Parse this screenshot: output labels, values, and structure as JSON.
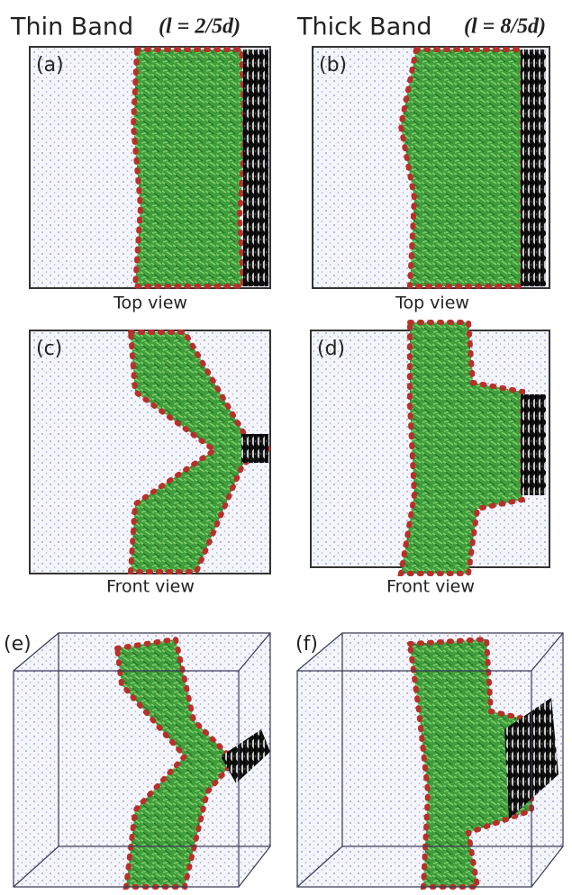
{
  "header": {
    "left": {
      "title": "Thin Band",
      "param": "(l = 2/5d)"
    },
    "right": {
      "title": "Thick Band",
      "param": "(l = 8/5d)"
    }
  },
  "panels": [
    {
      "label": "(a)",
      "caption": "Top view"
    },
    {
      "label": "(b)",
      "caption": "Top view"
    },
    {
      "label": "(c)",
      "caption": "Front view"
    },
    {
      "label": "(d)",
      "caption": "Front view"
    },
    {
      "label": "(e)"
    },
    {
      "label": "(f)"
    }
  ]
}
